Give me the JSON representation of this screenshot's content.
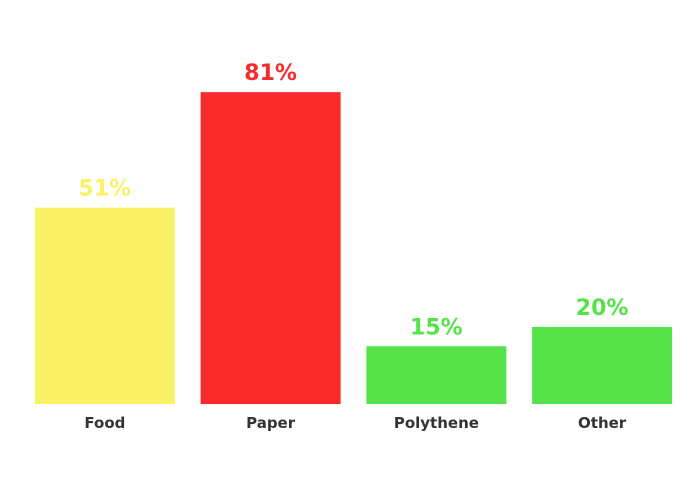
{
  "chart_data": {
    "type": "bar",
    "categories": [
      "Food",
      "Paper",
      "Polythene",
      "Other"
    ],
    "values": [
      51,
      81,
      15,
      20
    ],
    "value_labels": [
      "51%",
      "81%",
      "15%",
      "20%"
    ],
    "colors": [
      "#faf266",
      "#f92a2a",
      "#56e349",
      "#56e349"
    ],
    "ylim": [
      0,
      100
    ],
    "grid": false,
    "legend": "none",
    "title": "",
    "xlabel": "",
    "ylabel": ""
  }
}
